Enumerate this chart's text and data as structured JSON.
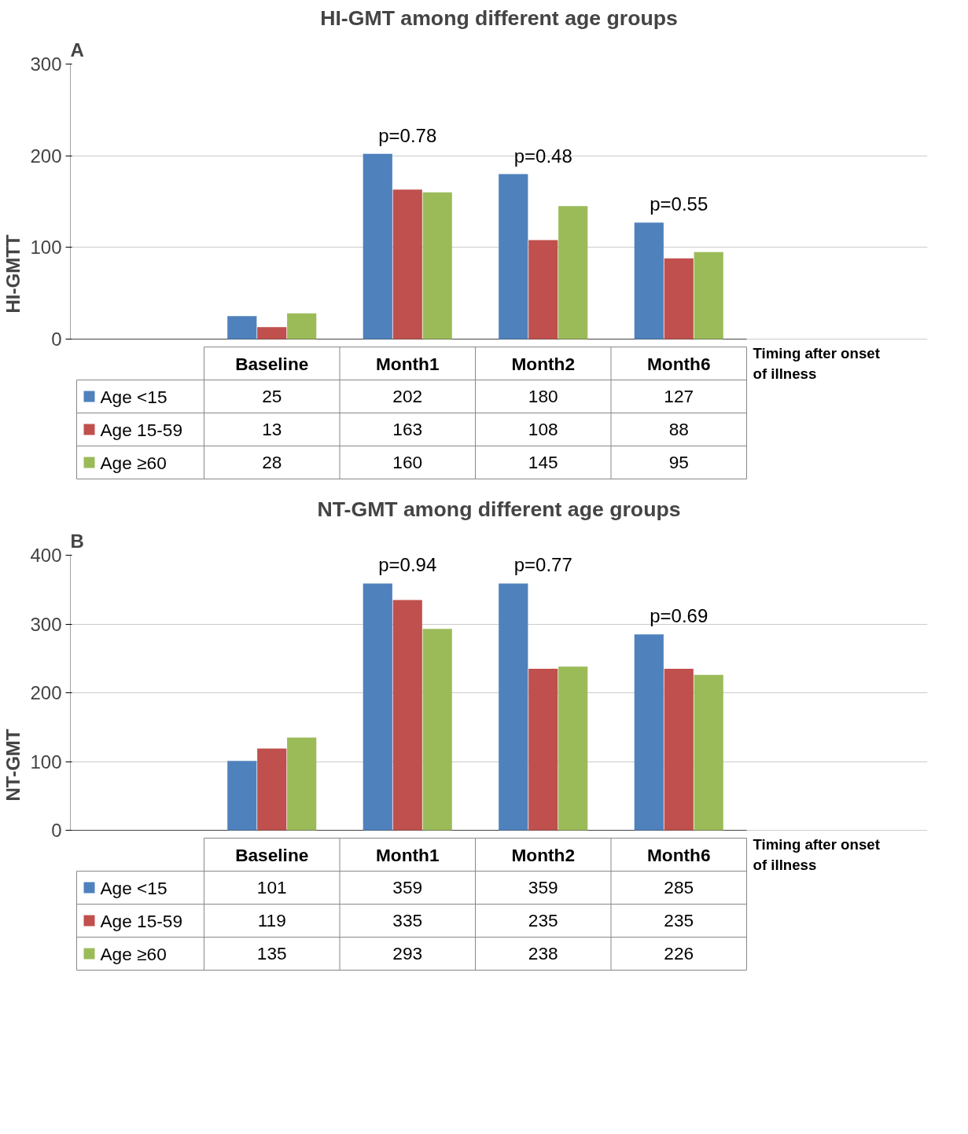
{
  "chart_data": [
    {
      "type": "bar",
      "title": "HI-GMT among different age groups",
      "ylabel": "HI-GMTT",
      "xlabel": "Timing after onset of illness",
      "categories": [
        "Baseline",
        "Month1",
        "Month2",
        "Month6"
      ],
      "series": [
        {
          "name": "Age <15",
          "color": "#4f81bd",
          "values": [
            25,
            202,
            180,
            127
          ]
        },
        {
          "name": "Age 15-59",
          "color": "#c0504d",
          "values": [
            13,
            163,
            108,
            88
          ]
        },
        {
          "name": "Age ≥60",
          "color": "#9bbb59",
          "values": [
            28,
            160,
            145,
            95
          ]
        }
      ],
      "ylim": [
        0,
        300
      ],
      "yticks": [
        0,
        100,
        200,
        300
      ],
      "grid": "y",
      "legend": "bottom",
      "data_labels": true,
      "annotations": [
        "A",
        "p=0.78",
        "p=0.48",
        "p=0.55"
      ]
    },
    {
      "type": "bar",
      "title": "NT-GMT among different age groups",
      "ylabel": "NT-GMT",
      "xlabel": "Timing after onset of illness",
      "categories": [
        "Baseline",
        "Month1",
        "Month2",
        "Month6"
      ],
      "series": [
        {
          "name": "Age <15",
          "color": "#4f81bd",
          "values": [
            101,
            359,
            359,
            285
          ]
        },
        {
          "name": "Age 15-59",
          "color": "#c0504d",
          "values": [
            119,
            335,
            235,
            235
          ]
        },
        {
          "name": "Age ≥60",
          "color": "#9bbb59",
          "values": [
            135,
            293,
            238,
            226
          ]
        }
      ],
      "ylim": [
        0,
        400
      ],
      "yticks": [
        0,
        100,
        200,
        300,
        400
      ],
      "grid": "y",
      "legend": "bottom",
      "data_labels": true,
      "annotations": [
        "B",
        "p=0.94",
        "p=0.77",
        "p=0.69"
      ]
    }
  ]
}
